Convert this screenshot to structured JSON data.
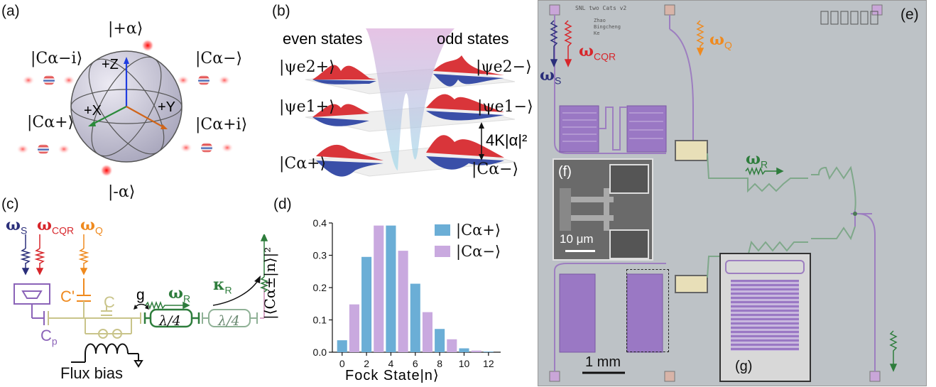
{
  "panels": {
    "a": {
      "label": "(a)",
      "kets": [
        "|+α⟩",
        "|−α⟩",
        "|C_α^{−i}⟩",
        "|C_α^−⟩",
        "|C_α^+⟩",
        "|C_α^{+i}⟩"
      ],
      "axes": [
        "+Z",
        "+X",
        "+Y"
      ],
      "ket_plus": "|+α⟩",
      "ket_minus": "|-α⟩",
      "ket_cmi": "|Cα−i⟩",
      "ket_cm": "|Cα−⟩",
      "ket_cp": "|Cα+⟩",
      "ket_cpi": "|Cα+i⟩",
      "axis_z": "+Z",
      "axis_x": "+X",
      "axis_y": "+Y"
    },
    "b": {
      "label": "(b)",
      "even": "even states",
      "odd": "odd states",
      "ket_e2p": "|ψe2+⟩",
      "ket_e2m": "|ψe2−⟩",
      "ket_e1p": "|ψe1+⟩",
      "ket_e1m": "|ψe1−⟩",
      "ket_cp": "|Cα+⟩",
      "ket_cm": "|Cα−⟩",
      "gap": "4K|α|²"
    },
    "c": {
      "label": "(c)",
      "omega_s": "ω",
      "omega_s_sub": "S",
      "omega_cqr": "ω",
      "omega_cqr_sub": "CQR",
      "omega_q": "ω",
      "omega_q_sub": "Q",
      "omega_r": "ω",
      "omega_r_sub": "R",
      "kappa": "κ",
      "kappa_sub": "R",
      "cprime": "C'",
      "c": "C",
      "g": "g",
      "cp": "C",
      "cp_sub": "p",
      "res1": "λ/4",
      "res2": "λ/4",
      "flux": "Flux bias"
    },
    "d": {
      "label": "(d)",
      "legend_plus": "|Cα+⟩",
      "legend_minus": "|Cα−⟩",
      "ylabel": "|⟨Cα±|n⟩|²",
      "xlabel": "Fock State|n⟩"
    },
    "e": {
      "label": "(e)",
      "inset_f": "(f)",
      "inset_g": "(g)",
      "scalebar_f": "10 μm",
      "scalebar_e": "1 mm",
      "omega_s": "ω",
      "omega_s_sub": "S",
      "omega_cqr": "ω",
      "omega_cqr_sub": "CQR",
      "omega_q": "ω",
      "omega_q_sub": "Q",
      "omega_r": "ω",
      "omega_r_sub": "R",
      "chip_title": "SNL two Cats v2",
      "chip_names": "Zhao\nBingcheng\nKe"
    }
  },
  "colors": {
    "blue_bar": "#6baed6",
    "purple_bar": "#c9a9df",
    "omega_s": "#2b2f7a",
    "omega_cqr": "#d7262b",
    "omega_q": "#ef8a1f",
    "omega_r": "#2e7d3c",
    "purple_circuit": "#8b63b8",
    "green_circuit": "#2e7d3c"
  },
  "chart_data": {
    "type": "bar",
    "xlabel": "Fock State|n⟩",
    "ylabel": "|⟨Cα±|n⟩|²",
    "ylim": [
      0,
      0.4
    ],
    "xlim": [
      -0.8,
      13
    ],
    "yticks": [
      0.0,
      0.1,
      0.2,
      0.3,
      0.4
    ],
    "xticks": [
      0,
      2,
      4,
      6,
      8,
      10,
      12
    ],
    "legend": "top-right",
    "series": [
      {
        "name": "|Cα+⟩",
        "color": "#6baed6",
        "x": [
          0,
          2,
          4,
          6,
          8,
          10,
          12
        ],
        "values": [
          0.037,
          0.295,
          0.392,
          0.212,
          0.072,
          0.012,
          0.002
        ]
      },
      {
        "name": "|Cα−⟩",
        "color": "#c9a9df",
        "x": [
          1,
          3,
          5,
          7,
          9,
          11
        ],
        "values": [
          0.148,
          0.392,
          0.314,
          0.124,
          0.04,
          0.005
        ]
      }
    ]
  }
}
